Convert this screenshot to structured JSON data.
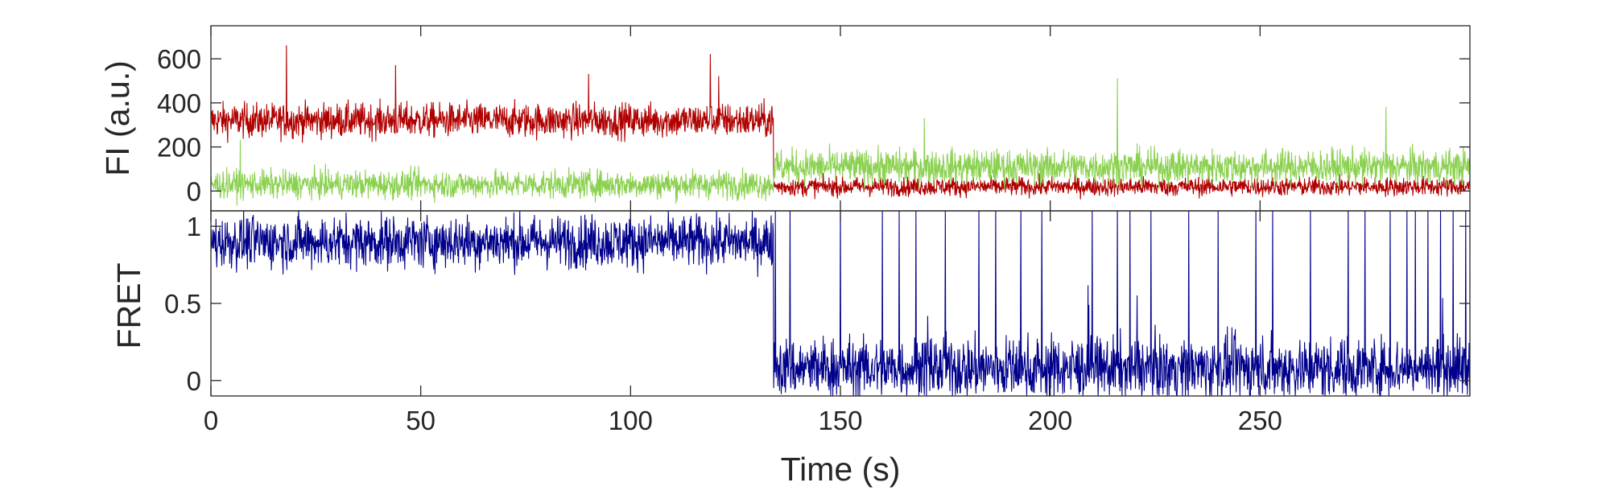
{
  "chart_data": [
    {
      "type": "line",
      "panel": "intensity",
      "title": "",
      "xlabel": "",
      "ylabel": "FI (a.u.)",
      "xlim": [
        0,
        300
      ],
      "ylim": [
        -90,
        750
      ],
      "yticks": [
        0,
        200,
        400,
        600
      ],
      "ytick_labels": [
        "0",
        "200",
        "400",
        "600"
      ],
      "grid": false,
      "series": [
        {
          "color": "#B00000",
          "segments": [
            {
              "x": [
                0,
                134
              ],
              "mean": 320,
              "noise": 55
            },
            {
              "x": [
                134,
                300
              ],
              "mean": 20,
              "noise": 30
            }
          ],
          "spikes": [
            [
              18,
              660
            ],
            [
              44,
              570
            ],
            [
              90,
              530
            ],
            [
              119,
              620
            ],
            [
              121,
              520
            ]
          ]
        },
        {
          "color": "#8BD150",
          "segments": [
            {
              "x": [
                0,
                134
              ],
              "mean": 30,
              "noise": 45
            },
            {
              "x": [
                134,
                300
              ],
              "mean": 110,
              "noise": 55
            }
          ],
          "spikes": [
            [
              7,
              230
            ],
            [
              170,
              330
            ],
            [
              216,
              510
            ],
            [
              280,
              380
            ]
          ]
        }
      ]
    },
    {
      "type": "line",
      "panel": "fret",
      "title": "",
      "xlabel": "Time (s)",
      "ylabel": "FRET",
      "xlim": [
        0,
        300
      ],
      "ylim": [
        -0.1,
        1.1
      ],
      "xticks": [
        0,
        50,
        100,
        150,
        200,
        250
      ],
      "xtick_labels": [
        "0",
        "50",
        "100",
        "150",
        "200",
        "250"
      ],
      "yticks": [
        0,
        0.5,
        1
      ],
      "ytick_labels": [
        "0",
        "0.5",
        "1"
      ],
      "grid": false,
      "series": [
        {
          "color": "#00008B",
          "segments": [
            {
              "x": [
                0,
                134
              ],
              "mean": 0.9,
              "noise": 0.12,
              "clip_max": 1.1
            },
            {
              "x": [
                134,
                300
              ],
              "mean": 0.08,
              "noise": 0.14,
              "clip_max": 1.1
            }
          ],
          "jumps": [
            134.5,
            138,
            150,
            160,
            164,
            168,
            175,
            183,
            187,
            193,
            198,
            210,
            216,
            219,
            224,
            233,
            240,
            249,
            253,
            262,
            271,
            275,
            281,
            285,
            287,
            290,
            293,
            296,
            299
          ]
        }
      ]
    }
  ]
}
